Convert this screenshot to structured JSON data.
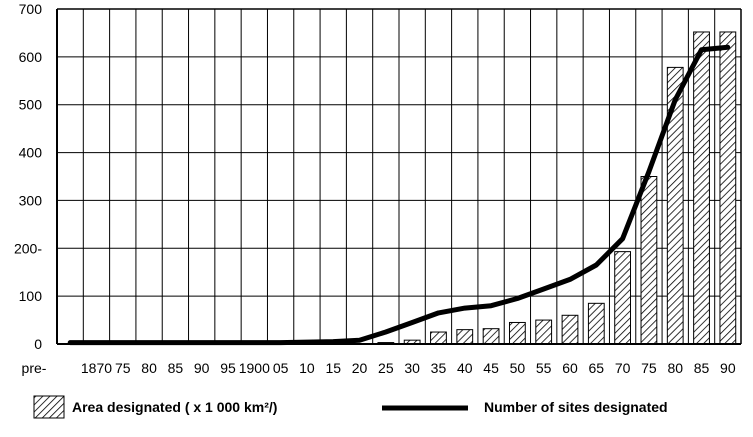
{
  "chart_data": {
    "type": "bar",
    "categories": [
      "pre-",
      "1870",
      "75",
      "80",
      "85",
      "90",
      "95",
      "1900",
      "05",
      "10",
      "15",
      "20",
      "25",
      "30",
      "35",
      "40",
      "45",
      "50",
      "55",
      "60",
      "65",
      "70",
      "75",
      "80",
      "85",
      "90"
    ],
    "series": [
      {
        "name": "Area designated ( x 1 000 km²/)",
        "type": "bar",
        "values": [
          0,
          0,
          0,
          0,
          0,
          0,
          0,
          0,
          0,
          0,
          0,
          1,
          3,
          8,
          25,
          30,
          32,
          45,
          50,
          60,
          85,
          193,
          350,
          578,
          652,
          652
        ]
      },
      {
        "name": "Number of sites designated",
        "type": "line",
        "values": [
          3,
          3,
          3,
          3,
          3,
          3,
          3,
          3,
          3,
          4,
          5,
          8,
          25,
          45,
          65,
          75,
          80,
          95,
          115,
          135,
          165,
          220,
          360,
          510,
          615,
          620
        ]
      }
    ],
    "y_ticks": [
      "0",
      "100",
      "200-",
      "300",
      "400",
      "500",
      "600",
      "700"
    ],
    "ylim": [
      0,
      700
    ],
    "grid": true,
    "legend_position": "bottom"
  },
  "colors": {
    "axis": "#000000",
    "bar_hatch": "#000000",
    "line": "#000000"
  }
}
